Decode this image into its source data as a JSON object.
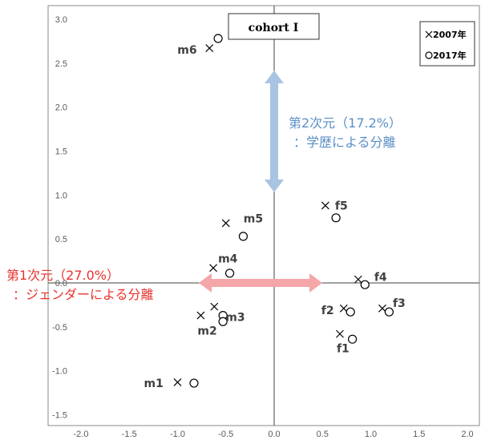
{
  "chart_data": {
    "type": "scatter",
    "title": "cohort I",
    "xlim": [
      -2.0,
      2.0
    ],
    "ylim": [
      -1.5,
      3.0
    ],
    "x_ticks": [
      "-2.0",
      "-1.5",
      "-1.0",
      "-0.5",
      "0.0",
      "0.5",
      "1.0",
      "1.5",
      "2.0"
    ],
    "y_ticks": [
      "3.0",
      "2.5",
      "2.0",
      "1.5",
      "1.0",
      "0.5",
      "0.0",
      "-0.5",
      "-1.0",
      "-1.5"
    ],
    "grid": false,
    "legend": {
      "placement": "top-right",
      "entries": [
        {
          "marker": "cross",
          "label": "2007年"
        },
        {
          "marker": "circle",
          "label": "2017年"
        }
      ]
    },
    "series": [
      {
        "name": "2007年",
        "marker": "cross",
        "points": [
          {
            "x": -0.67,
            "y": 2.67
          },
          {
            "x": -0.5,
            "y": 0.68
          },
          {
            "x": -0.63,
            "y": 0.17
          },
          {
            "x": -0.62,
            "y": -0.27
          },
          {
            "x": -0.76,
            "y": -0.37
          },
          {
            "x": -1.0,
            "y": -1.13
          },
          {
            "x": 0.53,
            "y": 0.88
          },
          {
            "x": 0.87,
            "y": 0.04
          },
          {
            "x": 1.12,
            "y": -0.29
          },
          {
            "x": 0.72,
            "y": -0.29
          },
          {
            "x": 0.68,
            "y": -0.58
          }
        ]
      },
      {
        "name": "2017年",
        "marker": "circle",
        "points": [
          {
            "x": -0.58,
            "y": 2.78
          },
          {
            "x": -0.32,
            "y": 0.53
          },
          {
            "x": -0.46,
            "y": 0.11
          },
          {
            "x": -0.53,
            "y": -0.37
          },
          {
            "x": -0.53,
            "y": -0.44
          },
          {
            "x": -0.83,
            "y": -1.14
          },
          {
            "x": 0.64,
            "y": 0.74
          },
          {
            "x": 0.94,
            "y": -0.02
          },
          {
            "x": 1.19,
            "y": -0.33
          },
          {
            "x": 0.79,
            "y": -0.33
          },
          {
            "x": 0.81,
            "y": -0.64
          }
        ]
      }
    ],
    "point_labels": [
      {
        "text": "m6",
        "x": -0.67,
        "y": 2.67
      },
      {
        "text": "m5",
        "x": -0.5,
        "y": 0.68
      },
      {
        "text": "m4",
        "x": -0.63,
        "y": 0.17
      },
      {
        "text": "m3",
        "x": -0.62,
        "y": -0.27
      },
      {
        "text": "m2",
        "x": -0.76,
        "y": -0.37
      },
      {
        "text": "m1",
        "x": -1.0,
        "y": -1.13
      },
      {
        "text": "f5",
        "x": 0.53,
        "y": 0.88
      },
      {
        "text": "f4",
        "x": 0.87,
        "y": 0.04
      },
      {
        "text": "f3",
        "x": 1.12,
        "y": -0.29
      },
      {
        "text": "f2",
        "x": 0.72,
        "y": -0.29
      },
      {
        "text": "f1",
        "x": 0.68,
        "y": -0.58
      }
    ],
    "annotations": {
      "dim2_line1": "第2次元（17.2%）",
      "dim2_line2": "：学歴による分離",
      "dim1_line1": "第1次元（27.0%）",
      "dim1_line2": "：ジェンダーによる分離"
    },
    "colors": {
      "dim1": "#e8322e",
      "dim1_arrow": "#f4a6a8",
      "dim2": "#5b8fc5",
      "dim2_arrow": "#a9c4e3"
    }
  }
}
